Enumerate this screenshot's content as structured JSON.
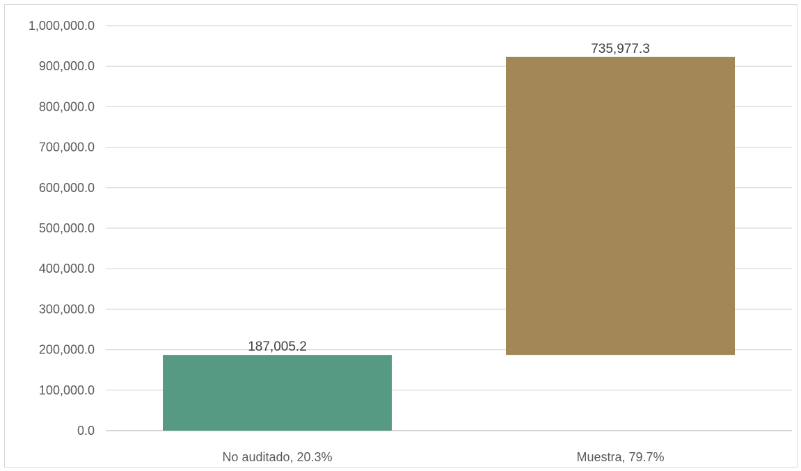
{
  "chart_data": {
    "type": "bar",
    "subtype": "waterfall",
    "title": "",
    "xlabel": "",
    "ylabel": "",
    "ylim": [
      0,
      1000000
    ],
    "yticks": [
      {
        "value": 0,
        "label": "0.0"
      },
      {
        "value": 100000,
        "label": "100,000.0"
      },
      {
        "value": 200000,
        "label": "200,000.0"
      },
      {
        "value": 300000,
        "label": "300,000.0"
      },
      {
        "value": 400000,
        "label": "400,000.0"
      },
      {
        "value": 500000,
        "label": "500,000.0"
      },
      {
        "value": 600000,
        "label": "600,000.0"
      },
      {
        "value": 700000,
        "label": "700,000.0"
      },
      {
        "value": 800000,
        "label": "800,000.0"
      },
      {
        "value": 900000,
        "label": "900,000.0"
      },
      {
        "value": 1000000,
        "label": "1,000,000.0"
      }
    ],
    "grid": true,
    "legend": "none",
    "bars": [
      {
        "category": "No auditado, 20.3%",
        "base": 0,
        "value": 187005.2,
        "label": "187,005.2",
        "color": "#579A83"
      },
      {
        "category": "Muestra, 79.7%",
        "base": 187005.2,
        "value": 735977.3,
        "label": "735,977.3",
        "color": "#A38857"
      }
    ]
  }
}
